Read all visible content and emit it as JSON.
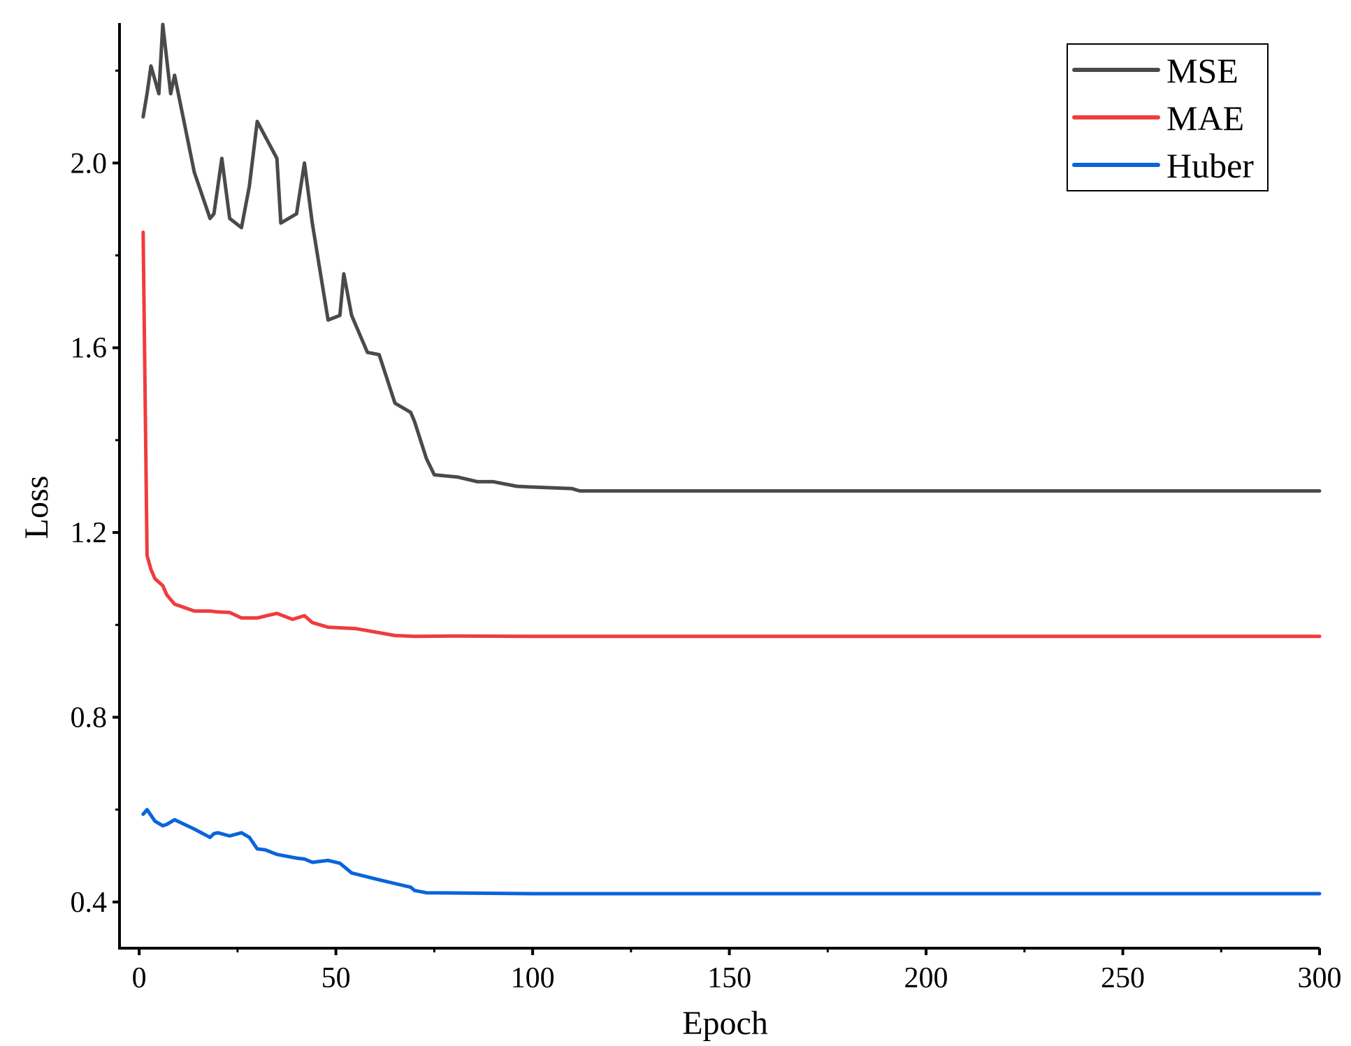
{
  "chart_data": {
    "type": "line",
    "title": "",
    "xlabel": "Epoch",
    "ylabel": "Loss",
    "xlim": [
      -5,
      300
    ],
    "ylim": [
      0.3,
      2.3
    ],
    "xticks": [
      0,
      50,
      100,
      150,
      200,
      250,
      300
    ],
    "xtick_labels": [
      "0",
      "50",
      "100",
      "150",
      "200",
      "250",
      "300"
    ],
    "yticks": [
      0.4,
      0.8,
      1.2,
      1.6,
      2.0
    ],
    "ytick_labels": [
      "0.4",
      "0.8",
      "1.2",
      "1.6",
      "2.0"
    ],
    "grid": false,
    "legend_position": "top-right",
    "series": [
      {
        "name": "MSE",
        "color": "#4a4a4a",
        "points": [
          [
            1,
            2.1
          ],
          [
            2,
            2.15
          ],
          [
            3,
            2.21
          ],
          [
            5,
            2.15
          ],
          [
            6,
            2.3
          ],
          [
            8,
            2.15
          ],
          [
            9,
            2.19
          ],
          [
            14,
            1.98
          ],
          [
            18,
            1.88
          ],
          [
            19,
            1.89
          ],
          [
            21,
            2.01
          ],
          [
            23,
            1.88
          ],
          [
            26,
            1.86
          ],
          [
            28,
            1.95
          ],
          [
            30,
            2.09
          ],
          [
            35,
            2.01
          ],
          [
            36,
            1.87
          ],
          [
            40,
            1.89
          ],
          [
            42,
            2.0
          ],
          [
            44,
            1.87
          ],
          [
            48,
            1.66
          ],
          [
            51,
            1.67
          ],
          [
            52,
            1.76
          ],
          [
            54,
            1.67
          ],
          [
            58,
            1.59
          ],
          [
            61,
            1.585
          ],
          [
            65,
            1.48
          ],
          [
            69,
            1.46
          ],
          [
            70,
            1.44
          ],
          [
            73,
            1.36
          ],
          [
            75,
            1.325
          ],
          [
            81,
            1.32
          ],
          [
            86,
            1.31
          ],
          [
            90,
            1.31
          ],
          [
            96,
            1.3
          ],
          [
            101,
            1.298
          ],
          [
            110,
            1.295
          ],
          [
            112,
            1.29
          ],
          [
            300,
            1.29
          ]
        ]
      },
      {
        "name": "MAE",
        "color": "#f03c3c",
        "points": [
          [
            1,
            1.85
          ],
          [
            2,
            1.15
          ],
          [
            3,
            1.12
          ],
          [
            4,
            1.1
          ],
          [
            6,
            1.085
          ],
          [
            7,
            1.065
          ],
          [
            9,
            1.045
          ],
          [
            14,
            1.03
          ],
          [
            18,
            1.03
          ],
          [
            20,
            1.028
          ],
          [
            23,
            1.027
          ],
          [
            26,
            1.015
          ],
          [
            30,
            1.015
          ],
          [
            35,
            1.025
          ],
          [
            39,
            1.012
          ],
          [
            42,
            1.02
          ],
          [
            44,
            1.005
          ],
          [
            48,
            0.995
          ],
          [
            55,
            0.992
          ],
          [
            65,
            0.977
          ],
          [
            70,
            0.975
          ],
          [
            80,
            0.976
          ],
          [
            100,
            0.975
          ],
          [
            300,
            0.975
          ]
        ]
      },
      {
        "name": "Huber",
        "color": "#0a64dc",
        "points": [
          [
            1,
            0.59
          ],
          [
            2,
            0.6
          ],
          [
            4,
            0.575
          ],
          [
            6,
            0.565
          ],
          [
            7,
            0.568
          ],
          [
            9,
            0.578
          ],
          [
            11,
            0.57
          ],
          [
            14,
            0.558
          ],
          [
            18,
            0.54
          ],
          [
            19,
            0.548
          ],
          [
            20,
            0.55
          ],
          [
            23,
            0.543
          ],
          [
            26,
            0.55
          ],
          [
            28,
            0.54
          ],
          [
            30,
            0.515
          ],
          [
            32,
            0.513
          ],
          [
            35,
            0.503
          ],
          [
            40,
            0.495
          ],
          [
            42,
            0.493
          ],
          [
            44,
            0.486
          ],
          [
            48,
            0.49
          ],
          [
            51,
            0.484
          ],
          [
            54,
            0.463
          ],
          [
            60,
            0.45
          ],
          [
            65,
            0.44
          ],
          [
            69,
            0.432
          ],
          [
            70,
            0.425
          ],
          [
            73,
            0.42
          ],
          [
            100,
            0.418
          ],
          [
            300,
            0.418
          ]
        ]
      }
    ]
  }
}
